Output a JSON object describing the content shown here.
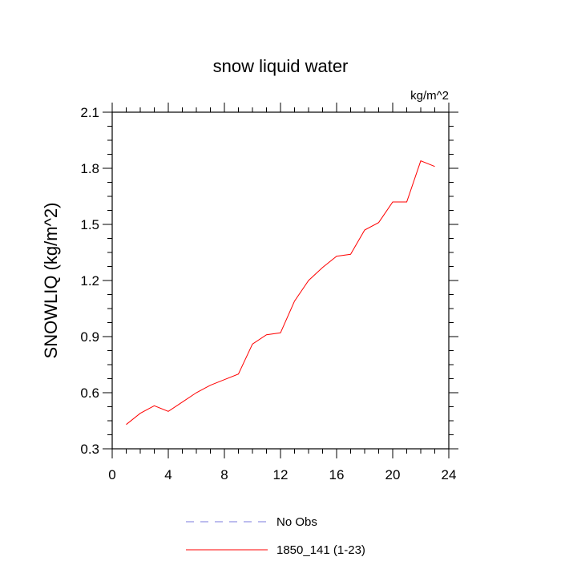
{
  "chart_data": {
    "type": "line",
    "title": "snow liquid water",
    "units_label": "kg/m^2",
    "xlabel": "",
    "ylabel": "SNOWLIQ  (kg/m^2)",
    "xlim": [
      0,
      24
    ],
    "ylim": [
      0.3,
      2.1
    ],
    "xticks": [
      "0",
      "4",
      "8",
      "12",
      "16",
      "20",
      "24"
    ],
    "yticks": [
      "0.3",
      "0.6",
      "0.9",
      "1.2",
      "1.5",
      "1.8",
      "2.1"
    ],
    "grid": false,
    "legend_position": "bottom",
    "series": [
      {
        "name": "No Obs",
        "color": "#7b7bdc",
        "style": "dashed",
        "x": [],
        "values": []
      },
      {
        "name": "1850_141 (1-23)",
        "color": "#ff0000",
        "style": "solid",
        "x": [
          1,
          2,
          3,
          4,
          5,
          6,
          7,
          8,
          9,
          10,
          11,
          12,
          13,
          14,
          15,
          16,
          17,
          18,
          19,
          20,
          21,
          22,
          23
        ],
        "values": [
          0.43,
          0.49,
          0.53,
          0.5,
          0.55,
          0.6,
          0.64,
          0.67,
          0.7,
          0.86,
          0.91,
          0.92,
          1.09,
          1.2,
          1.27,
          1.33,
          1.34,
          1.47,
          1.51,
          1.62,
          1.62,
          1.84,
          1.81
        ]
      }
    ]
  }
}
